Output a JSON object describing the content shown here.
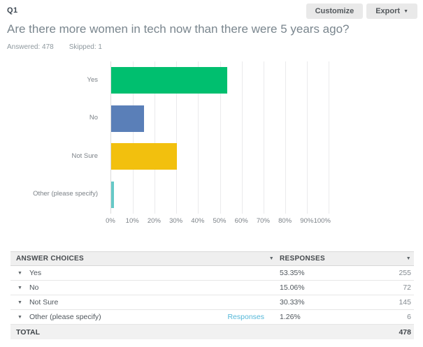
{
  "header": {
    "question_number": "Q1",
    "title": "Are there more women in tech now than there were 5 years ago?",
    "answered": "Answered: 478",
    "skipped": "Skipped: 1",
    "customize_label": "Customize",
    "export_label": "Export"
  },
  "chart_data": {
    "type": "bar",
    "orientation": "horizontal",
    "categories": [
      "Yes",
      "No",
      "Not Sure",
      "Other (please specify)"
    ],
    "values": [
      53.35,
      15.06,
      30.33,
      1.26
    ],
    "colors": [
      "#00bf6f",
      "#5a7fb8",
      "#f2c00e",
      "#66c9c7"
    ],
    "title": "",
    "xlabel": "",
    "ylabel": "",
    "xlim": [
      0,
      100
    ],
    "x_ticks": [
      "0%",
      "10%",
      "20%",
      "30%",
      "40%",
      "50%",
      "60%",
      "70%",
      "80%",
      "90%",
      "100%"
    ],
    "grid": true,
    "legend": "none"
  },
  "table": {
    "columns": [
      "ANSWER CHOICES",
      "RESPONSES"
    ],
    "rows": [
      {
        "label": "Yes",
        "link": "",
        "pct": "53.35%",
        "count": "255"
      },
      {
        "label": "No",
        "link": "",
        "pct": "15.06%",
        "count": "72"
      },
      {
        "label": "Not Sure",
        "link": "",
        "pct": "30.33%",
        "count": "145"
      },
      {
        "label": "Other (please specify)",
        "link": "Responses",
        "pct": "1.26%",
        "count": "6"
      }
    ],
    "total": {
      "label": "TOTAL",
      "count": "478"
    }
  },
  "colors": {
    "link_blue": "#54b7d8",
    "header_gray": "#efefef",
    "title_gray": "#7a868e"
  }
}
